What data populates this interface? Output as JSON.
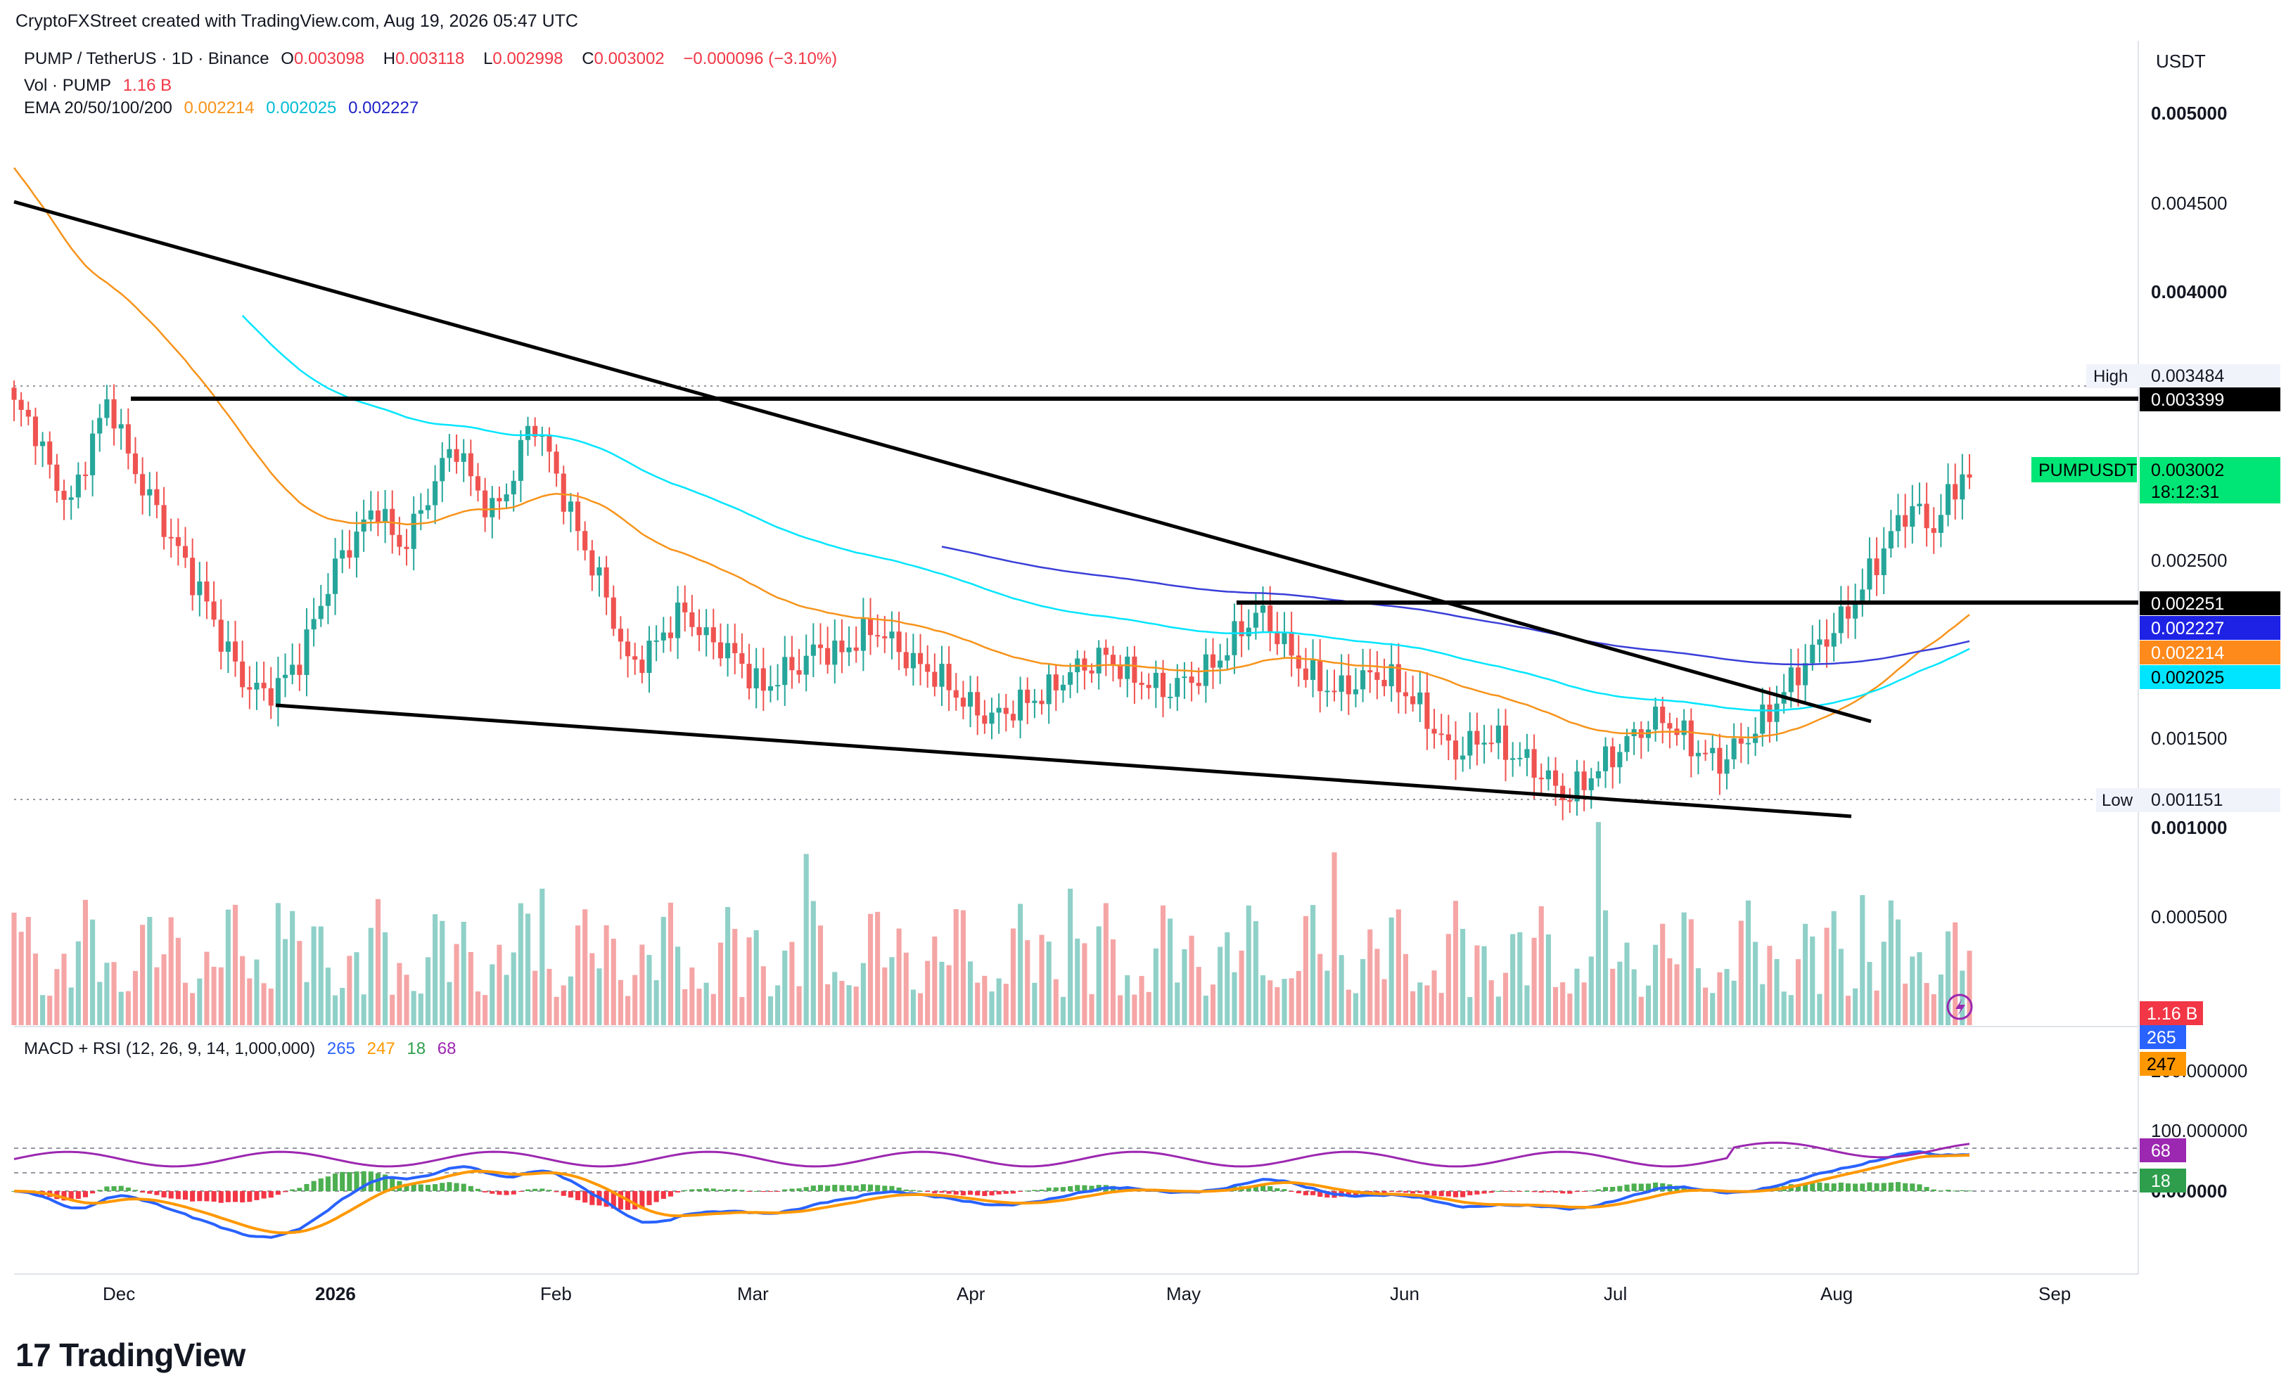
{
  "watermark": "CryptoFXStreet created with TradingView.com, Aug 19, 2026 05:47 UTC",
  "legend": {
    "symbol": "PUMP / TetherUS · 1D · Binance",
    "open_label": "O",
    "open": "0.003098",
    "high_label": "H",
    "high": "0.003118",
    "low_label": "L",
    "low": "0.002998",
    "close_label": "C",
    "close": "0.003002",
    "change": "−0.000096 (−3.10%)",
    "vol_label": "Vol · PUMP",
    "vol": "1.16 B",
    "ema_label": "EMA 20/50/100/200",
    "ema_values": [
      "0.002214",
      "0.002025",
      "0.002227"
    ],
    "macd_label": "MACD + RSI (12, 26, 9, 14, 1,000,000)",
    "macd_values": [
      "265",
      "247",
      "18",
      "68"
    ]
  },
  "colors": {
    "up": "#26a69a",
    "down": "#ef5350",
    "ema20": "#f7931a",
    "ema50": "#00e5ff",
    "ema200": "#3a3fd8",
    "macd": "#2962ff",
    "signal": "#ff9800",
    "rsi": "#9c27b0",
    "vol_up": "#8fd0c8",
    "vol_down": "#f5a5a5",
    "badge_current": "#00e676",
    "badge_high": "#000000"
  },
  "price_axis": {
    "currency": "USDT",
    "ticks": [
      "0.005000",
      "0.004500",
      "0.004000",
      "0.002500",
      "0.001500",
      "0.001000",
      "0.000500"
    ],
    "high_label": "High",
    "high_value": "0.003484",
    "low_label": "Low",
    "low_value": "0.001151",
    "resistance_value": "0.003399",
    "support_value": "0.002251",
    "ema200_value": "0.002227",
    "ema20_value": "0.002214",
    "ema50_value": "0.002025",
    "symbol_badge": "PUMPUSDT",
    "current_value": "0.003002",
    "countdown": "18:12:31",
    "volume_value": "1.16 B"
  },
  "macd_axis": {
    "ticks": [
      "200.000000",
      "100.000000",
      "0.000000"
    ],
    "macd_value": "265",
    "signal_value": "247",
    "hist_value": "18",
    "rsi_value": "68"
  },
  "time_axis": [
    "Dec",
    "2026",
    "Feb",
    "Mar",
    "Apr",
    "May",
    "Jun",
    "Jul",
    "Aug",
    "Sep"
  ],
  "brand": "TradingView",
  "chart_data": {
    "type": "candlestick",
    "x_range": [
      "2025-11-17",
      "2026-09-20"
    ],
    "y_range": [
      0.0008,
      0.0052
    ],
    "candles_close_approx": [
      {
        "x": "2025-11-24",
        "close": 0.00345
      },
      {
        "x": "2025-12-15",
        "close": 0.00175
      },
      {
        "x": "2026-01-28",
        "close": 0.0034
      },
      {
        "x": "2026-02-07",
        "close": 0.0018
      },
      {
        "x": "2026-03-20",
        "close": 0.0019
      },
      {
        "x": "2026-04-14",
        "close": 0.0016
      },
      {
        "x": "2026-05-10",
        "close": 0.0022
      },
      {
        "x": "2026-06-24",
        "close": 0.00118
      },
      {
        "x": "2026-07-16",
        "close": 0.0015
      },
      {
        "x": "2026-08-07",
        "close": 0.00215
      },
      {
        "x": "2026-08-18",
        "close": 0.0031
      },
      {
        "x": "2026-08-19",
        "close": 0.003002
      }
    ],
    "horizontal_levels": [
      0.003399,
      0.002251
    ],
    "trendlines": [
      {
        "from": [
          "2025-11-17",
          0.00455
        ],
        "to": [
          "2026-08-17",
          0.0016
        ]
      },
      {
        "from": [
          "2025-12-14",
          0.00172
        ],
        "to": [
          "2026-08-16",
          0.00106
        ]
      }
    ]
  }
}
